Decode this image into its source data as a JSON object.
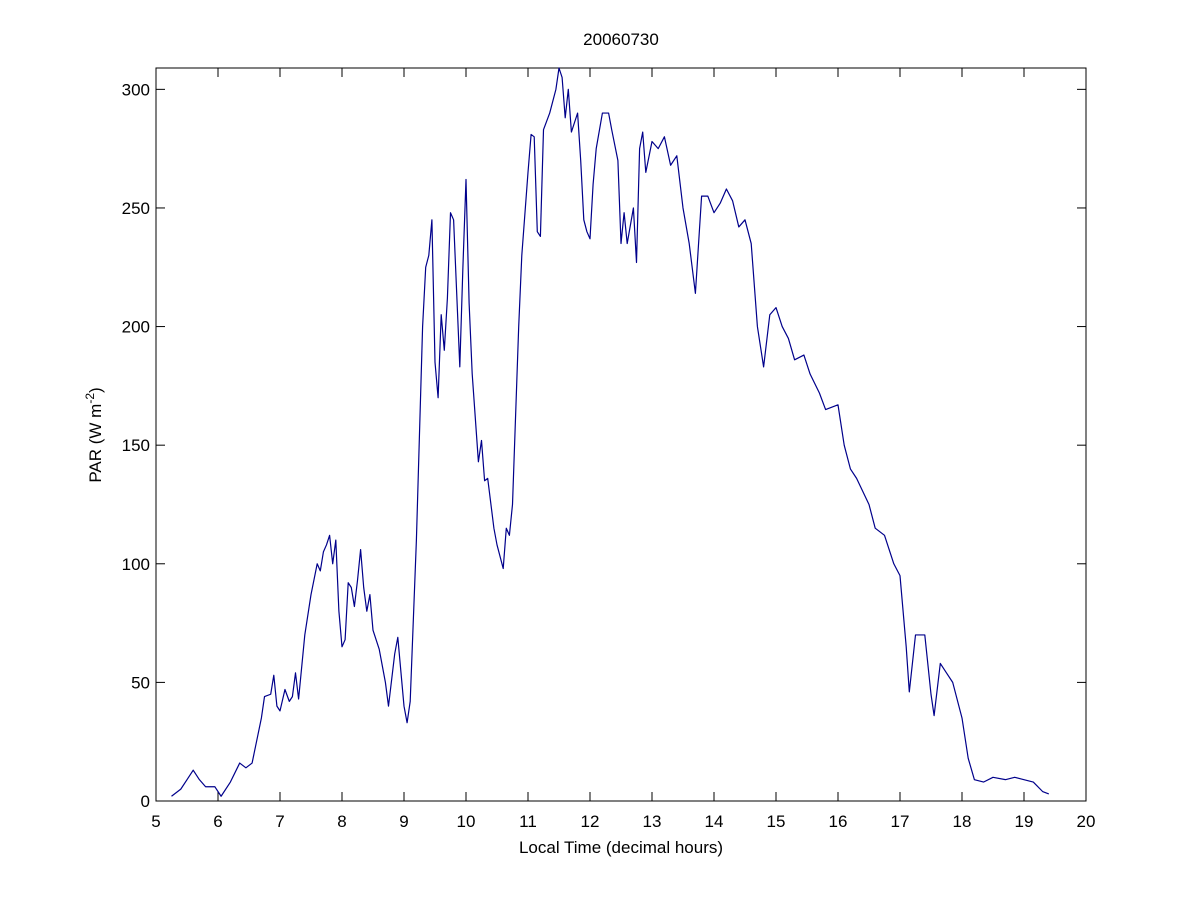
{
  "chart_data": {
    "type": "line",
    "title": "20060730",
    "xlabel": "Local Time (decimal hours)",
    "ylabel_parts": [
      "PAR (W m",
      "-2",
      ")"
    ],
    "color": "#00008b",
    "xlim": [
      5,
      20
    ],
    "xticks": [
      5,
      6,
      7,
      8,
      9,
      10,
      11,
      12,
      13,
      14,
      15,
      16,
      17,
      18,
      19,
      20
    ],
    "ylim": [
      0,
      309
    ],
    "yticks": [
      0,
      50,
      100,
      150,
      200,
      250,
      300
    ],
    "x": [
      5.25,
      5.4,
      5.5,
      5.6,
      5.7,
      5.8,
      5.95,
      6.05,
      6.2,
      6.35,
      6.45,
      6.55,
      6.7,
      6.75,
      6.85,
      6.9,
      6.95,
      7.0,
      7.08,
      7.15,
      7.2,
      7.25,
      7.3,
      7.4,
      7.5,
      7.6,
      7.65,
      7.7,
      7.75,
      7.8,
      7.85,
      7.9,
      7.95,
      8.0,
      8.05,
      8.1,
      8.15,
      8.2,
      8.25,
      8.3,
      8.35,
      8.4,
      8.45,
      8.5,
      8.6,
      8.7,
      8.75,
      8.85,
      8.9,
      9.0,
      9.05,
      9.1,
      9.2,
      9.3,
      9.35,
      9.4,
      9.45,
      9.5,
      9.55,
      9.6,
      9.65,
      9.7,
      9.75,
      9.8,
      9.9,
      9.95,
      10.0,
      10.05,
      10.1,
      10.2,
      10.25,
      10.3,
      10.35,
      10.45,
      10.5,
      10.6,
      10.65,
      10.7,
      10.75,
      10.85,
      10.9,
      11.0,
      11.05,
      11.1,
      11.15,
      11.2,
      11.25,
      11.35,
      11.45,
      11.5,
      11.55,
      11.6,
      11.65,
      11.7,
      11.8,
      11.85,
      11.9,
      11.95,
      12.0,
      12.05,
      12.1,
      12.2,
      12.3,
      12.35,
      12.45,
      12.5,
      12.55,
      12.6,
      12.7,
      12.75,
      12.8,
      12.85,
      12.9,
      13.0,
      13.1,
      13.2,
      13.3,
      13.4,
      13.5,
      13.6,
      13.7,
      13.8,
      13.9,
      14.0,
      14.1,
      14.2,
      14.3,
      14.4,
      14.5,
      14.6,
      14.7,
      14.8,
      14.9,
      15.0,
      15.1,
      15.2,
      15.3,
      15.45,
      15.55,
      15.7,
      15.8,
      16.0,
      16.1,
      16.2,
      16.3,
      16.5,
      16.6,
      16.75,
      16.9,
      17.0,
      17.1,
      17.15,
      17.25,
      17.4,
      17.5,
      17.55,
      17.65,
      17.75,
      17.85,
      18.0,
      18.1,
      18.2,
      18.35,
      18.5,
      18.7,
      18.85,
      19.0,
      19.15,
      19.3,
      19.4
    ],
    "values": [
      2,
      5,
      9,
      13,
      9,
      6,
      6,
      2,
      8,
      16,
      14,
      16,
      35,
      44,
      45,
      53,
      40,
      38,
      47,
      42,
      44,
      54,
      43,
      70,
      87,
      100,
      97,
      105,
      108,
      112,
      100,
      110,
      80,
      65,
      68,
      92,
      90,
      82,
      93,
      106,
      90,
      80,
      87,
      72,
      64,
      50,
      40,
      62,
      69,
      40,
      33,
      42,
      110,
      200,
      225,
      230,
      245,
      185,
      170,
      205,
      190,
      212,
      248,
      245,
      183,
      225,
      262,
      210,
      180,
      143,
      152,
      135,
      136,
      115,
      108,
      98,
      115,
      112,
      125,
      200,
      230,
      265,
      281,
      280,
      240,
      238,
      283,
      290,
      300,
      309,
      305,
      288,
      300,
      282,
      290,
      270,
      245,
      240,
      237,
      260,
      275,
      290,
      290,
      283,
      270,
      235,
      248,
      235,
      250,
      227,
      275,
      282,
      265,
      278,
      275,
      280,
      268,
      272,
      250,
      235,
      214,
      255,
      255,
      248,
      252,
      258,
      253,
      242,
      245,
      235,
      200,
      183,
      205,
      208,
      200,
      195,
      186,
      188,
      180,
      172,
      165,
      167,
      150,
      140,
      136,
      125,
      115,
      112,
      100,
      95,
      65,
      46,
      70,
      70,
      45,
      36,
      58,
      54,
      50,
      35,
      18,
      9,
      8,
      10,
      9,
      10,
      9,
      8,
      4,
      3
    ]
  }
}
